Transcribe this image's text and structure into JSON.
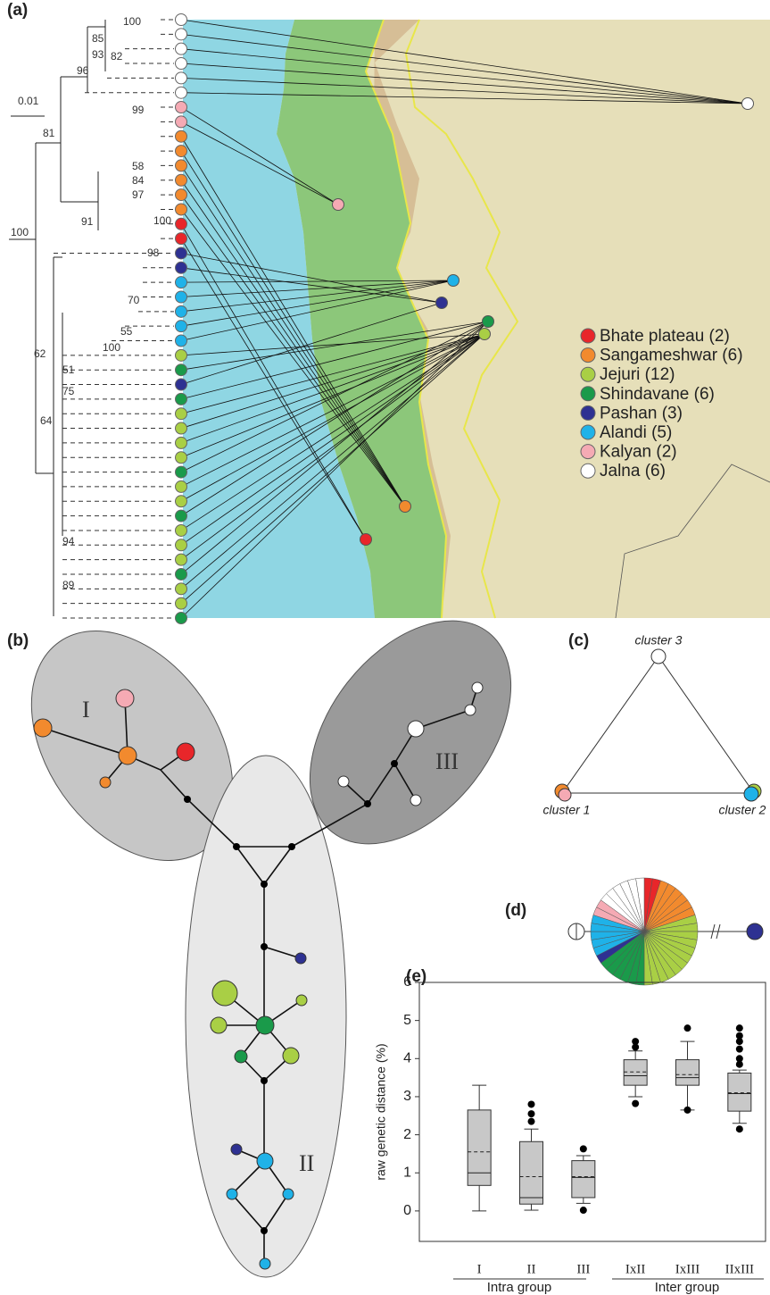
{
  "panel_labels": [
    "(a)",
    "(b)",
    "(c)",
    "(d)",
    "(e)"
  ],
  "tree": {
    "scale_label": "0.01",
    "support": [
      "100",
      "85",
      "93",
      "82",
      "96",
      "81",
      "99",
      "58",
      "84",
      "97",
      "100",
      "91",
      "98",
      "100",
      "70",
      "55",
      "100",
      "62",
      "51",
      "75",
      "64",
      "94",
      "89"
    ]
  },
  "legend": [
    {
      "label": "Bhate plateau (2)",
      "color": "#e8262a"
    },
    {
      "label": "Sangameshwar (6)",
      "color": "#f28a2e"
    },
    {
      "label": "Jejuri (12)",
      "color": "#a9cf45"
    },
    {
      "label": "Shindavane (6)",
      "color": "#1a9a4a"
    },
    {
      "label": "Pashan (3)",
      "color": "#2e3192"
    },
    {
      "label": "Alandi (5)",
      "color": "#1fb2e8"
    },
    {
      "label": "Kalyan (2)",
      "color": "#f5aab4"
    },
    {
      "label": "Jalna (6)",
      "color": "#ffffff"
    }
  ],
  "tips": [
    7,
    7,
    7,
    7,
    7,
    7,
    6,
    6,
    1,
    1,
    1,
    1,
    1,
    1,
    0,
    0,
    4,
    4,
    5,
    5,
    5,
    5,
    5,
    2,
    3,
    4,
    3,
    2,
    2,
    2,
    2,
    3,
    2,
    2,
    3,
    2,
    2,
    2,
    3,
    2,
    2,
    3
  ],
  "network": {
    "groups": [
      "I",
      "II",
      "III"
    ]
  },
  "clusters": [
    "cluster 3",
    "cluster 1",
    "cluster 2"
  ],
  "chart_data": {
    "type": "box",
    "y_label": "raw genetic distance (%)",
    "categories": [
      "I",
      "II",
      "III",
      "IxII",
      "IxIII",
      "IIxIII"
    ],
    "group_labels": [
      "Intra group",
      "Inter group"
    ],
    "ylim": [
      -0.8,
      6
    ],
    "yticks": [
      0,
      1,
      2,
      3,
      4,
      5,
      6
    ],
    "color": "#c8c8c8",
    "boxes": [
      {
        "whisker_low": 0,
        "q1": 0.67,
        "median": 1.0,
        "mean": 1.55,
        "q3": 2.65,
        "whisker_high": 3.3,
        "outliers": []
      },
      {
        "whisker_low": 0.02,
        "q1": 0.18,
        "median": 0.35,
        "mean": 0.9,
        "q3": 1.82,
        "whisker_high": 2.15,
        "outliers": [
          2.35,
          2.55,
          2.8
        ]
      },
      {
        "whisker_low": 0.2,
        "q1": 0.35,
        "median": 0.88,
        "mean": 0.9,
        "q3": 1.32,
        "whisker_high": 1.45,
        "outliers": [
          0.02,
          1.63
        ]
      },
      {
        "whisker_low": 3.0,
        "q1": 3.3,
        "median": 3.55,
        "mean": 3.65,
        "q3": 3.97,
        "whisker_high": 4.2,
        "outliers": [
          2.82,
          4.3,
          4.45
        ]
      },
      {
        "whisker_low": 2.65,
        "q1": 3.3,
        "median": 3.5,
        "mean": 3.58,
        "q3": 3.97,
        "whisker_high": 4.45,
        "outliers": [
          2.65,
          4.8
        ]
      },
      {
        "whisker_low": 2.3,
        "q1": 2.62,
        "median": 3.08,
        "mean": 3.1,
        "q3": 3.62,
        "whisker_high": 3.7,
        "outliers": [
          2.15,
          3.85,
          4.0,
          4.25,
          4.45,
          4.6,
          4.8
        ]
      }
    ]
  }
}
